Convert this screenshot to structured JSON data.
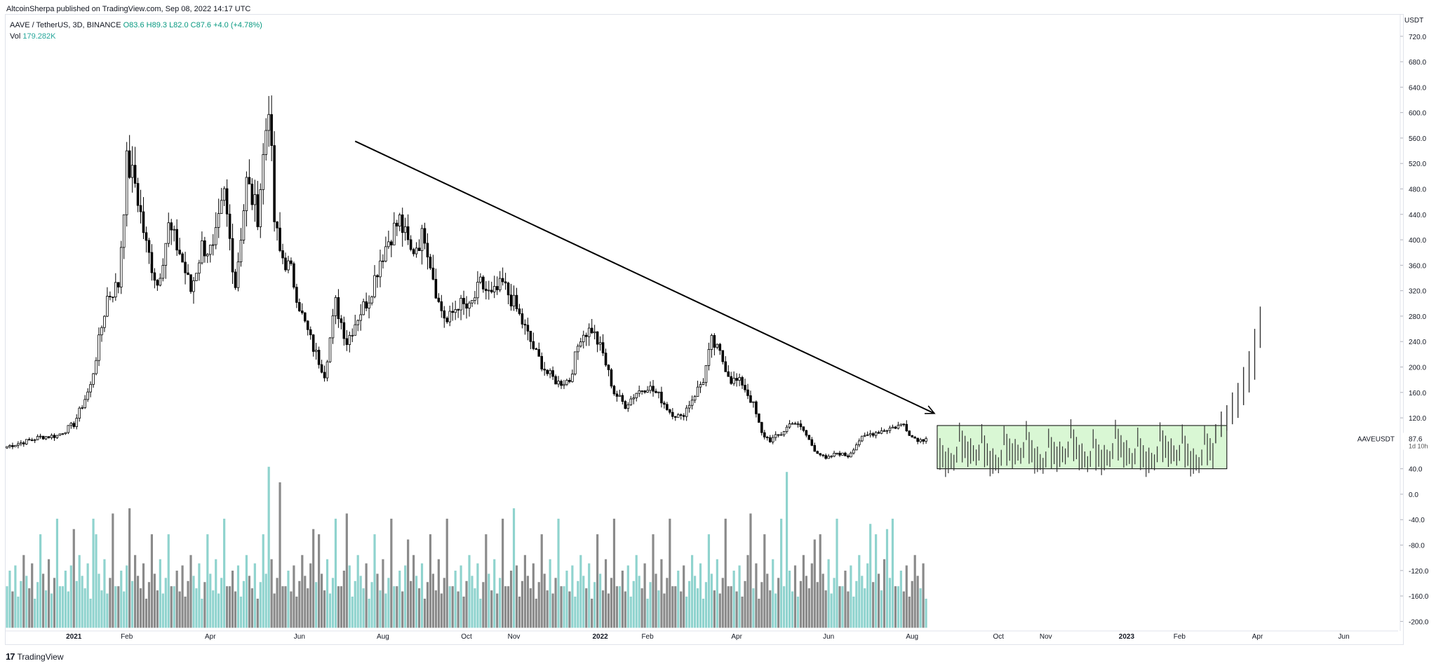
{
  "header": {
    "published": "AltcoinSherpa published on TradingView.com, Sep 08, 2022 14:17 UTC"
  },
  "legend": {
    "symbol": "AAVE / TetherUS, 3D, BINANCE",
    "open": "O83.6",
    "high": "H89.3",
    "low": "L82.0",
    "close": "C87.6",
    "change": "+4.0 (+4.78%)",
    "vol_label": "Vol",
    "vol_value": "179.282K"
  },
  "footer": {
    "brand": "TradingView"
  },
  "colors": {
    "up_body": "#ffffff",
    "down_body": "#000000",
    "candle_outline": "#000000",
    "vol_up": "#8fd3ce",
    "vol_down": "#8a8a8a",
    "box_fill": "#d9f7d4",
    "box_stroke": "#000000",
    "projection": "#333333",
    "price_tag": "#131722"
  },
  "chart_data": {
    "type": "candlestick",
    "title": "AAVE / TetherUS, 3D, BINANCE",
    "y_unit": "USDT",
    "price_ylim": [
      -215,
      755
    ],
    "y_ticks": [
      720,
      680,
      640,
      600,
      560,
      520,
      480,
      440,
      400,
      360,
      320,
      280,
      240,
      200,
      160,
      120,
      40,
      0,
      -40,
      -80,
      -120,
      -160,
      -200
    ],
    "x_ticks": [
      "2021",
      "Feb",
      "Apr",
      "Jun",
      "Aug",
      "Oct",
      "Nov",
      "2022",
      "Feb",
      "Apr",
      "Jun",
      "Aug",
      "Oct",
      "Nov",
      "2023",
      "Feb",
      "Apr",
      "Jun"
    ],
    "x_tick_index": [
      24,
      43,
      73,
      105,
      135,
      165,
      182,
      213,
      230,
      262,
      295,
      325,
      356,
      373,
      402,
      421,
      449,
      480
    ],
    "bars_total": 500,
    "last_price_label": "AAVEUSDT",
    "last_price": "87.6",
    "countdown": "1d 10h",
    "anchors": [
      [
        0,
        75
      ],
      [
        6,
        82
      ],
      [
        12,
        90
      ],
      [
        18,
        92
      ],
      [
        24,
        110
      ],
      [
        30,
        170
      ],
      [
        36,
        310
      ],
      [
        40,
        330
      ],
      [
        43,
        520
      ],
      [
        46,
        490
      ],
      [
        50,
        390
      ],
      [
        54,
        330
      ],
      [
        58,
        420
      ],
      [
        62,
        380
      ],
      [
        66,
        320
      ],
      [
        70,
        390
      ],
      [
        74,
        380
      ],
      [
        78,
        470
      ],
      [
        82,
        330
      ],
      [
        86,
        490
      ],
      [
        90,
        440
      ],
      [
        94,
        620
      ],
      [
        96,
        430
      ],
      [
        98,
        380
      ],
      [
        102,
        350
      ],
      [
        106,
        280
      ],
      [
        110,
        230
      ],
      [
        114,
        190
      ],
      [
        118,
        300
      ],
      [
        122,
        240
      ],
      [
        126,
        280
      ],
      [
        130,
        310
      ],
      [
        134,
        370
      ],
      [
        138,
        410
      ],
      [
        141,
        430
      ],
      [
        145,
        380
      ],
      [
        150,
        410
      ],
      [
        155,
        300
      ],
      [
        158,
        270
      ],
      [
        162,
        300
      ],
      [
        166,
        290
      ],
      [
        170,
        330
      ],
      [
        174,
        310
      ],
      [
        178,
        330
      ],
      [
        182,
        300
      ],
      [
        186,
        260
      ],
      [
        190,
        220
      ],
      [
        194,
        190
      ],
      [
        198,
        175
      ],
      [
        202,
        180
      ],
      [
        206,
        250
      ],
      [
        210,
        260
      ],
      [
        214,
        220
      ],
      [
        218,
        160
      ],
      [
        222,
        140
      ],
      [
        226,
        160
      ],
      [
        230,
        170
      ],
      [
        234,
        155
      ],
      [
        238,
        130
      ],
      [
        242,
        120
      ],
      [
        246,
        150
      ],
      [
        250,
        180
      ],
      [
        253,
        240
      ],
      [
        256,
        220
      ],
      [
        260,
        180
      ],
      [
        264,
        175
      ],
      [
        268,
        140
      ],
      [
        271,
        95
      ],
      [
        274,
        85
      ],
      [
        278,
        95
      ],
      [
        282,
        115
      ],
      [
        286,
        100
      ],
      [
        290,
        70
      ],
      [
        294,
        55
      ],
      [
        298,
        65
      ],
      [
        302,
        60
      ],
      [
        306,
        85
      ],
      [
        310,
        95
      ],
      [
        314,
        100
      ],
      [
        318,
        105
      ],
      [
        322,
        110
      ],
      [
        325,
        90
      ],
      [
        328,
        85
      ],
      [
        330,
        87.6
      ]
    ],
    "volume_ylim": [
      0,
      150
    ],
    "volume_base_price": -210,
    "volume_top_price": 35,
    "volume_pattern": [
      40,
      55,
      35,
      60,
      30,
      45,
      70,
      50,
      38,
      62,
      28,
      44,
      90,
      52,
      36,
      66,
      33,
      48,
      105,
      40
    ],
    "volume_spikes": [
      [
        24,
        95
      ],
      [
        31,
        105
      ],
      [
        38,
        110
      ],
      [
        44,
        115
      ],
      [
        58,
        90
      ],
      [
        94,
        155
      ],
      [
        98,
        140
      ],
      [
        110,
        95
      ],
      [
        122,
        110
      ],
      [
        144,
        85
      ],
      [
        182,
        115
      ],
      [
        267,
        110
      ],
      [
        280,
        150
      ],
      [
        290,
        85
      ],
      [
        310,
        100
      ],
      [
        316,
        95
      ]
    ],
    "projection": {
      "start_index": 334,
      "pattern": [
        [
          0,
          80,
          110
        ],
        [
          2,
          45,
          95
        ],
        [
          4,
          50,
          85
        ],
        [
          6,
          35,
          75
        ],
        [
          8,
          40,
          80
        ],
        [
          10,
          45,
          70
        ],
        [
          12,
          40,
          65
        ],
        [
          14,
          50,
          75
        ]
      ],
      "rise": [
        [
          434,
          80,
          110
        ],
        [
          436,
          90,
          130
        ],
        [
          438,
          100,
          140
        ],
        [
          440,
          110,
          160
        ],
        [
          442,
          120,
          175
        ],
        [
          444,
          140,
          200
        ],
        [
          446,
          160,
          225
        ],
        [
          448,
          180,
          260
        ],
        [
          450,
          230,
          295
        ]
      ]
    },
    "annotations": [
      {
        "type": "trendline-arrow",
        "from": [
          125,
          555
        ],
        "to": [
          333,
          127
        ]
      },
      {
        "type": "rectangle",
        "from": [
          334,
          108
        ],
        "to": [
          438,
          40
        ]
      }
    ]
  }
}
